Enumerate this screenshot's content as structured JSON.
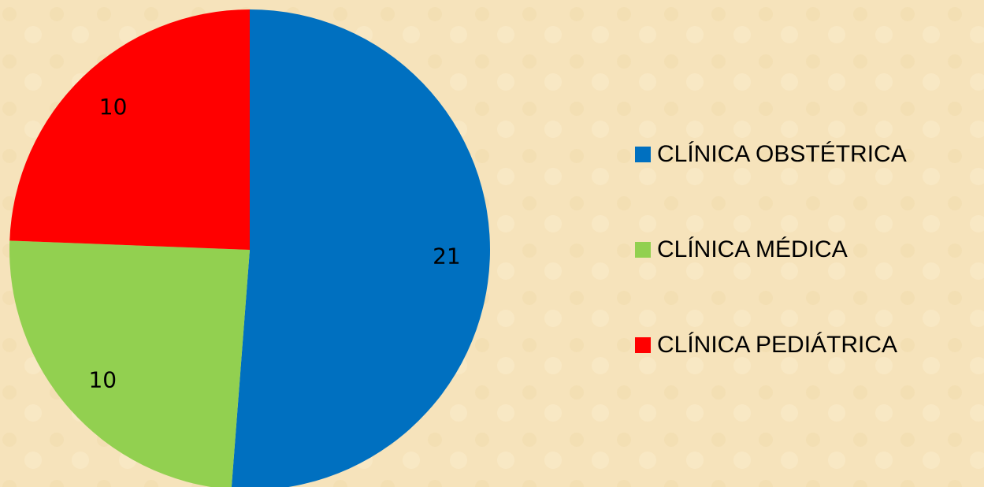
{
  "chart_data": {
    "type": "pie",
    "categories": [
      "CLÍNICA OBSTÉTRICA",
      "CLÍNICA MÉDICA",
      "CLÍNICA PEDIÁTRICA"
    ],
    "values": [
      21,
      10,
      10
    ],
    "colors": [
      "#0070c0",
      "#92d050",
      "#ff0000"
    ],
    "legend": "right"
  }
}
